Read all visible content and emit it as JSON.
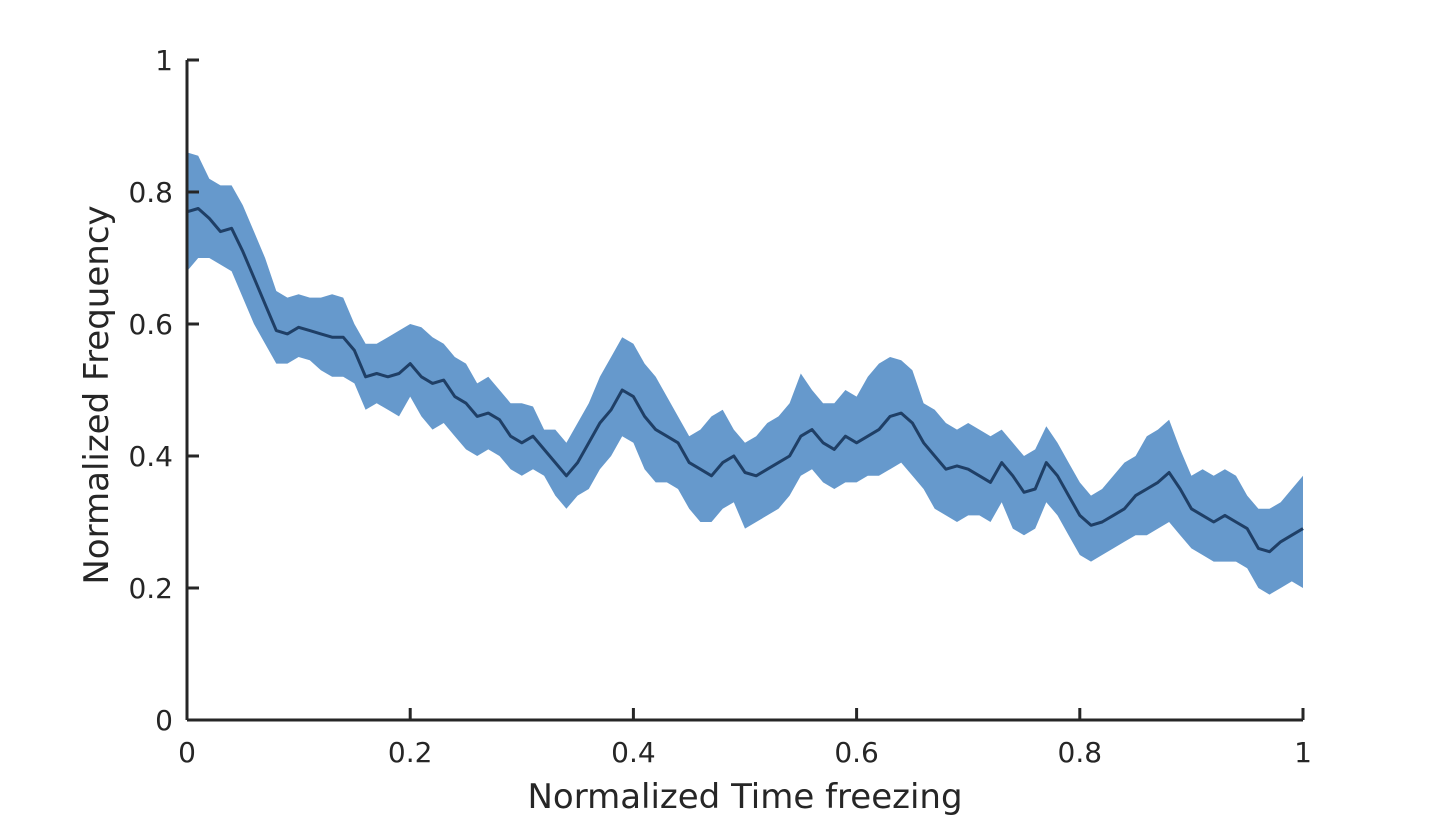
{
  "chart_data": {
    "type": "area",
    "title": "",
    "xlabel": "Normalized Time freezing",
    "ylabel": "Normalized Frequency",
    "xlim": [
      0,
      1
    ],
    "ylim": [
      0,
      1
    ],
    "xticks": [
      0,
      0.2,
      0.4,
      0.6,
      0.8,
      1
    ],
    "yticks": [
      0,
      0.2,
      0.4,
      0.6,
      0.8,
      1
    ],
    "xtick_labels": [
      "0",
      "0.2",
      "0.4",
      "0.6",
      "0.8",
      "1"
    ],
    "ytick_labels": [
      "0",
      "0.2",
      "0.4",
      "0.6",
      "0.8",
      "1"
    ],
    "grid": false,
    "legend": "none",
    "colors": {
      "band": "#6699cc",
      "line": "#1f3f66",
      "axis": "#262626"
    },
    "series": [
      {
        "x": [
          0,
          0.01,
          0.02,
          0.03,
          0.04,
          0.05,
          0.06,
          0.07,
          0.08,
          0.09,
          0.1,
          0.11,
          0.12,
          0.13,
          0.14,
          0.15,
          0.16,
          0.17,
          0.18,
          0.19,
          0.2,
          0.21,
          0.22,
          0.23,
          0.24,
          0.25,
          0.26,
          0.27,
          0.28,
          0.29,
          0.3,
          0.31,
          0.32,
          0.33,
          0.34,
          0.35,
          0.36,
          0.37,
          0.38,
          0.39,
          0.4,
          0.41,
          0.42,
          0.43,
          0.44,
          0.45,
          0.46,
          0.47,
          0.48,
          0.49,
          0.5,
          0.51,
          0.52,
          0.53,
          0.54,
          0.55,
          0.56,
          0.57,
          0.58,
          0.59,
          0.6,
          0.61,
          0.62,
          0.63,
          0.64,
          0.65,
          0.66,
          0.67,
          0.68,
          0.69,
          0.7,
          0.71,
          0.72,
          0.73,
          0.74,
          0.75,
          0.76,
          0.77,
          0.78,
          0.79,
          0.8,
          0.81,
          0.82,
          0.83,
          0.84,
          0.85,
          0.86,
          0.87,
          0.88,
          0.89,
          0.9,
          0.91,
          0.92,
          0.93,
          0.94,
          0.95,
          0.96,
          0.97,
          0.98,
          0.99,
          1.0
        ],
        "mean": [
          0.77,
          0.775,
          0.76,
          0.74,
          0.745,
          0.71,
          0.67,
          0.63,
          0.59,
          0.585,
          0.595,
          0.59,
          0.585,
          0.58,
          0.58,
          0.56,
          0.52,
          0.525,
          0.52,
          0.525,
          0.54,
          0.52,
          0.51,
          0.515,
          0.49,
          0.48,
          0.46,
          0.465,
          0.455,
          0.43,
          0.42,
          0.43,
          0.41,
          0.39,
          0.37,
          0.39,
          0.42,
          0.45,
          0.47,
          0.5,
          0.49,
          0.46,
          0.44,
          0.43,
          0.42,
          0.39,
          0.38,
          0.37,
          0.39,
          0.4,
          0.375,
          0.37,
          0.38,
          0.39,
          0.4,
          0.43,
          0.44,
          0.42,
          0.41,
          0.43,
          0.42,
          0.43,
          0.44,
          0.46,
          0.465,
          0.45,
          0.42,
          0.4,
          0.38,
          0.385,
          0.38,
          0.37,
          0.36,
          0.39,
          0.37,
          0.345,
          0.35,
          0.39,
          0.37,
          0.34,
          0.31,
          0.295,
          0.3,
          0.31,
          0.32,
          0.34,
          0.35,
          0.36,
          0.375,
          0.35,
          0.32,
          0.31,
          0.3,
          0.31,
          0.3,
          0.29,
          0.26,
          0.255,
          0.27,
          0.28,
          0.29
        ],
        "upper": [
          0.86,
          0.855,
          0.82,
          0.81,
          0.81,
          0.78,
          0.74,
          0.7,
          0.65,
          0.64,
          0.645,
          0.64,
          0.64,
          0.645,
          0.64,
          0.6,
          0.57,
          0.57,
          0.58,
          0.59,
          0.6,
          0.595,
          0.58,
          0.57,
          0.55,
          0.54,
          0.51,
          0.52,
          0.5,
          0.48,
          0.48,
          0.475,
          0.44,
          0.44,
          0.42,
          0.45,
          0.48,
          0.52,
          0.55,
          0.58,
          0.57,
          0.54,
          0.52,
          0.49,
          0.46,
          0.43,
          0.44,
          0.46,
          0.47,
          0.44,
          0.42,
          0.43,
          0.45,
          0.46,
          0.48,
          0.525,
          0.5,
          0.48,
          0.48,
          0.5,
          0.49,
          0.52,
          0.54,
          0.55,
          0.545,
          0.53,
          0.48,
          0.47,
          0.45,
          0.44,
          0.45,
          0.44,
          0.43,
          0.44,
          0.42,
          0.4,
          0.41,
          0.445,
          0.42,
          0.39,
          0.36,
          0.34,
          0.35,
          0.37,
          0.39,
          0.4,
          0.43,
          0.44,
          0.455,
          0.41,
          0.37,
          0.38,
          0.37,
          0.38,
          0.37,
          0.34,
          0.32,
          0.32,
          0.33,
          0.35,
          0.37
        ],
        "lower": [
          0.68,
          0.7,
          0.7,
          0.69,
          0.68,
          0.64,
          0.6,
          0.57,
          0.54,
          0.54,
          0.55,
          0.545,
          0.53,
          0.52,
          0.52,
          0.51,
          0.47,
          0.48,
          0.47,
          0.46,
          0.49,
          0.46,
          0.44,
          0.45,
          0.43,
          0.41,
          0.4,
          0.41,
          0.4,
          0.38,
          0.37,
          0.38,
          0.37,
          0.34,
          0.32,
          0.34,
          0.35,
          0.38,
          0.4,
          0.43,
          0.42,
          0.38,
          0.36,
          0.36,
          0.35,
          0.32,
          0.3,
          0.3,
          0.32,
          0.33,
          0.29,
          0.3,
          0.31,
          0.32,
          0.34,
          0.37,
          0.38,
          0.36,
          0.35,
          0.36,
          0.36,
          0.37,
          0.37,
          0.38,
          0.39,
          0.37,
          0.35,
          0.32,
          0.31,
          0.3,
          0.31,
          0.31,
          0.3,
          0.33,
          0.29,
          0.28,
          0.29,
          0.33,
          0.31,
          0.28,
          0.25,
          0.24,
          0.25,
          0.26,
          0.27,
          0.28,
          0.28,
          0.29,
          0.3,
          0.28,
          0.26,
          0.25,
          0.24,
          0.24,
          0.24,
          0.23,
          0.2,
          0.19,
          0.2,
          0.21,
          0.2
        ]
      }
    ]
  }
}
